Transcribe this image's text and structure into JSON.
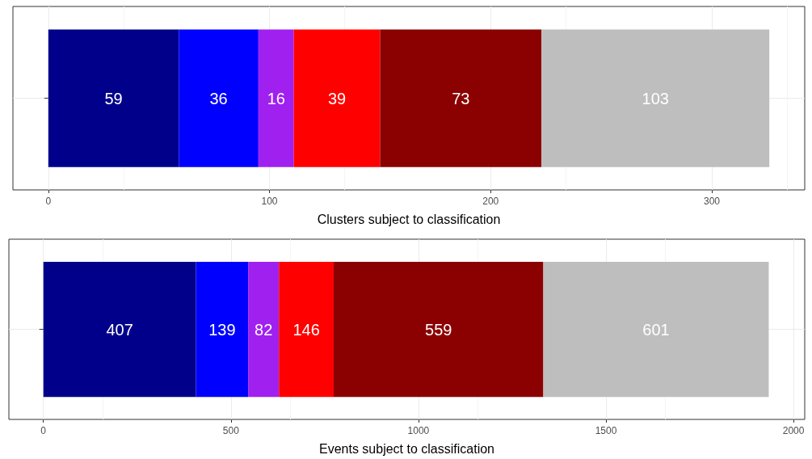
{
  "chart_data": [
    {
      "type": "bar",
      "orientation": "horizontal",
      "stacked": true,
      "categories": [
        null
      ],
      "xlabel": "Clusters subject to classification",
      "xlim": [
        -16,
        342
      ],
      "xticks": [
        0,
        100,
        200,
        300
      ],
      "grid": true,
      "data_labels": true,
      "series": [
        {
          "color": "#00008b",
          "values": [
            59
          ]
        },
        {
          "color": "#0000ff",
          "values": [
            36
          ]
        },
        {
          "color": "#a020f0",
          "values": [
            16
          ]
        },
        {
          "color": "#ff0000",
          "values": [
            39
          ]
        },
        {
          "color": "#8b0000",
          "values": [
            73
          ]
        },
        {
          "color": "#bebebe",
          "values": [
            103
          ]
        }
      ]
    },
    {
      "type": "bar",
      "orientation": "horizontal",
      "stacked": true,
      "categories": [
        null
      ],
      "xlabel": "Events subject to classification",
      "xlim": [
        -92,
        2030
      ],
      "xticks": [
        0,
        500,
        1000,
        1500,
        2000
      ],
      "grid": true,
      "data_labels": true,
      "series": [
        {
          "color": "#00008b",
          "values": [
            407
          ]
        },
        {
          "color": "#0000ff",
          "values": [
            139
          ]
        },
        {
          "color": "#a020f0",
          "values": [
            82
          ]
        },
        {
          "color": "#ff0000",
          "values": [
            146
          ]
        },
        {
          "color": "#8b0000",
          "values": [
            559
          ]
        },
        {
          "color": "#bebebe",
          "values": [
            601
          ]
        }
      ]
    }
  ]
}
